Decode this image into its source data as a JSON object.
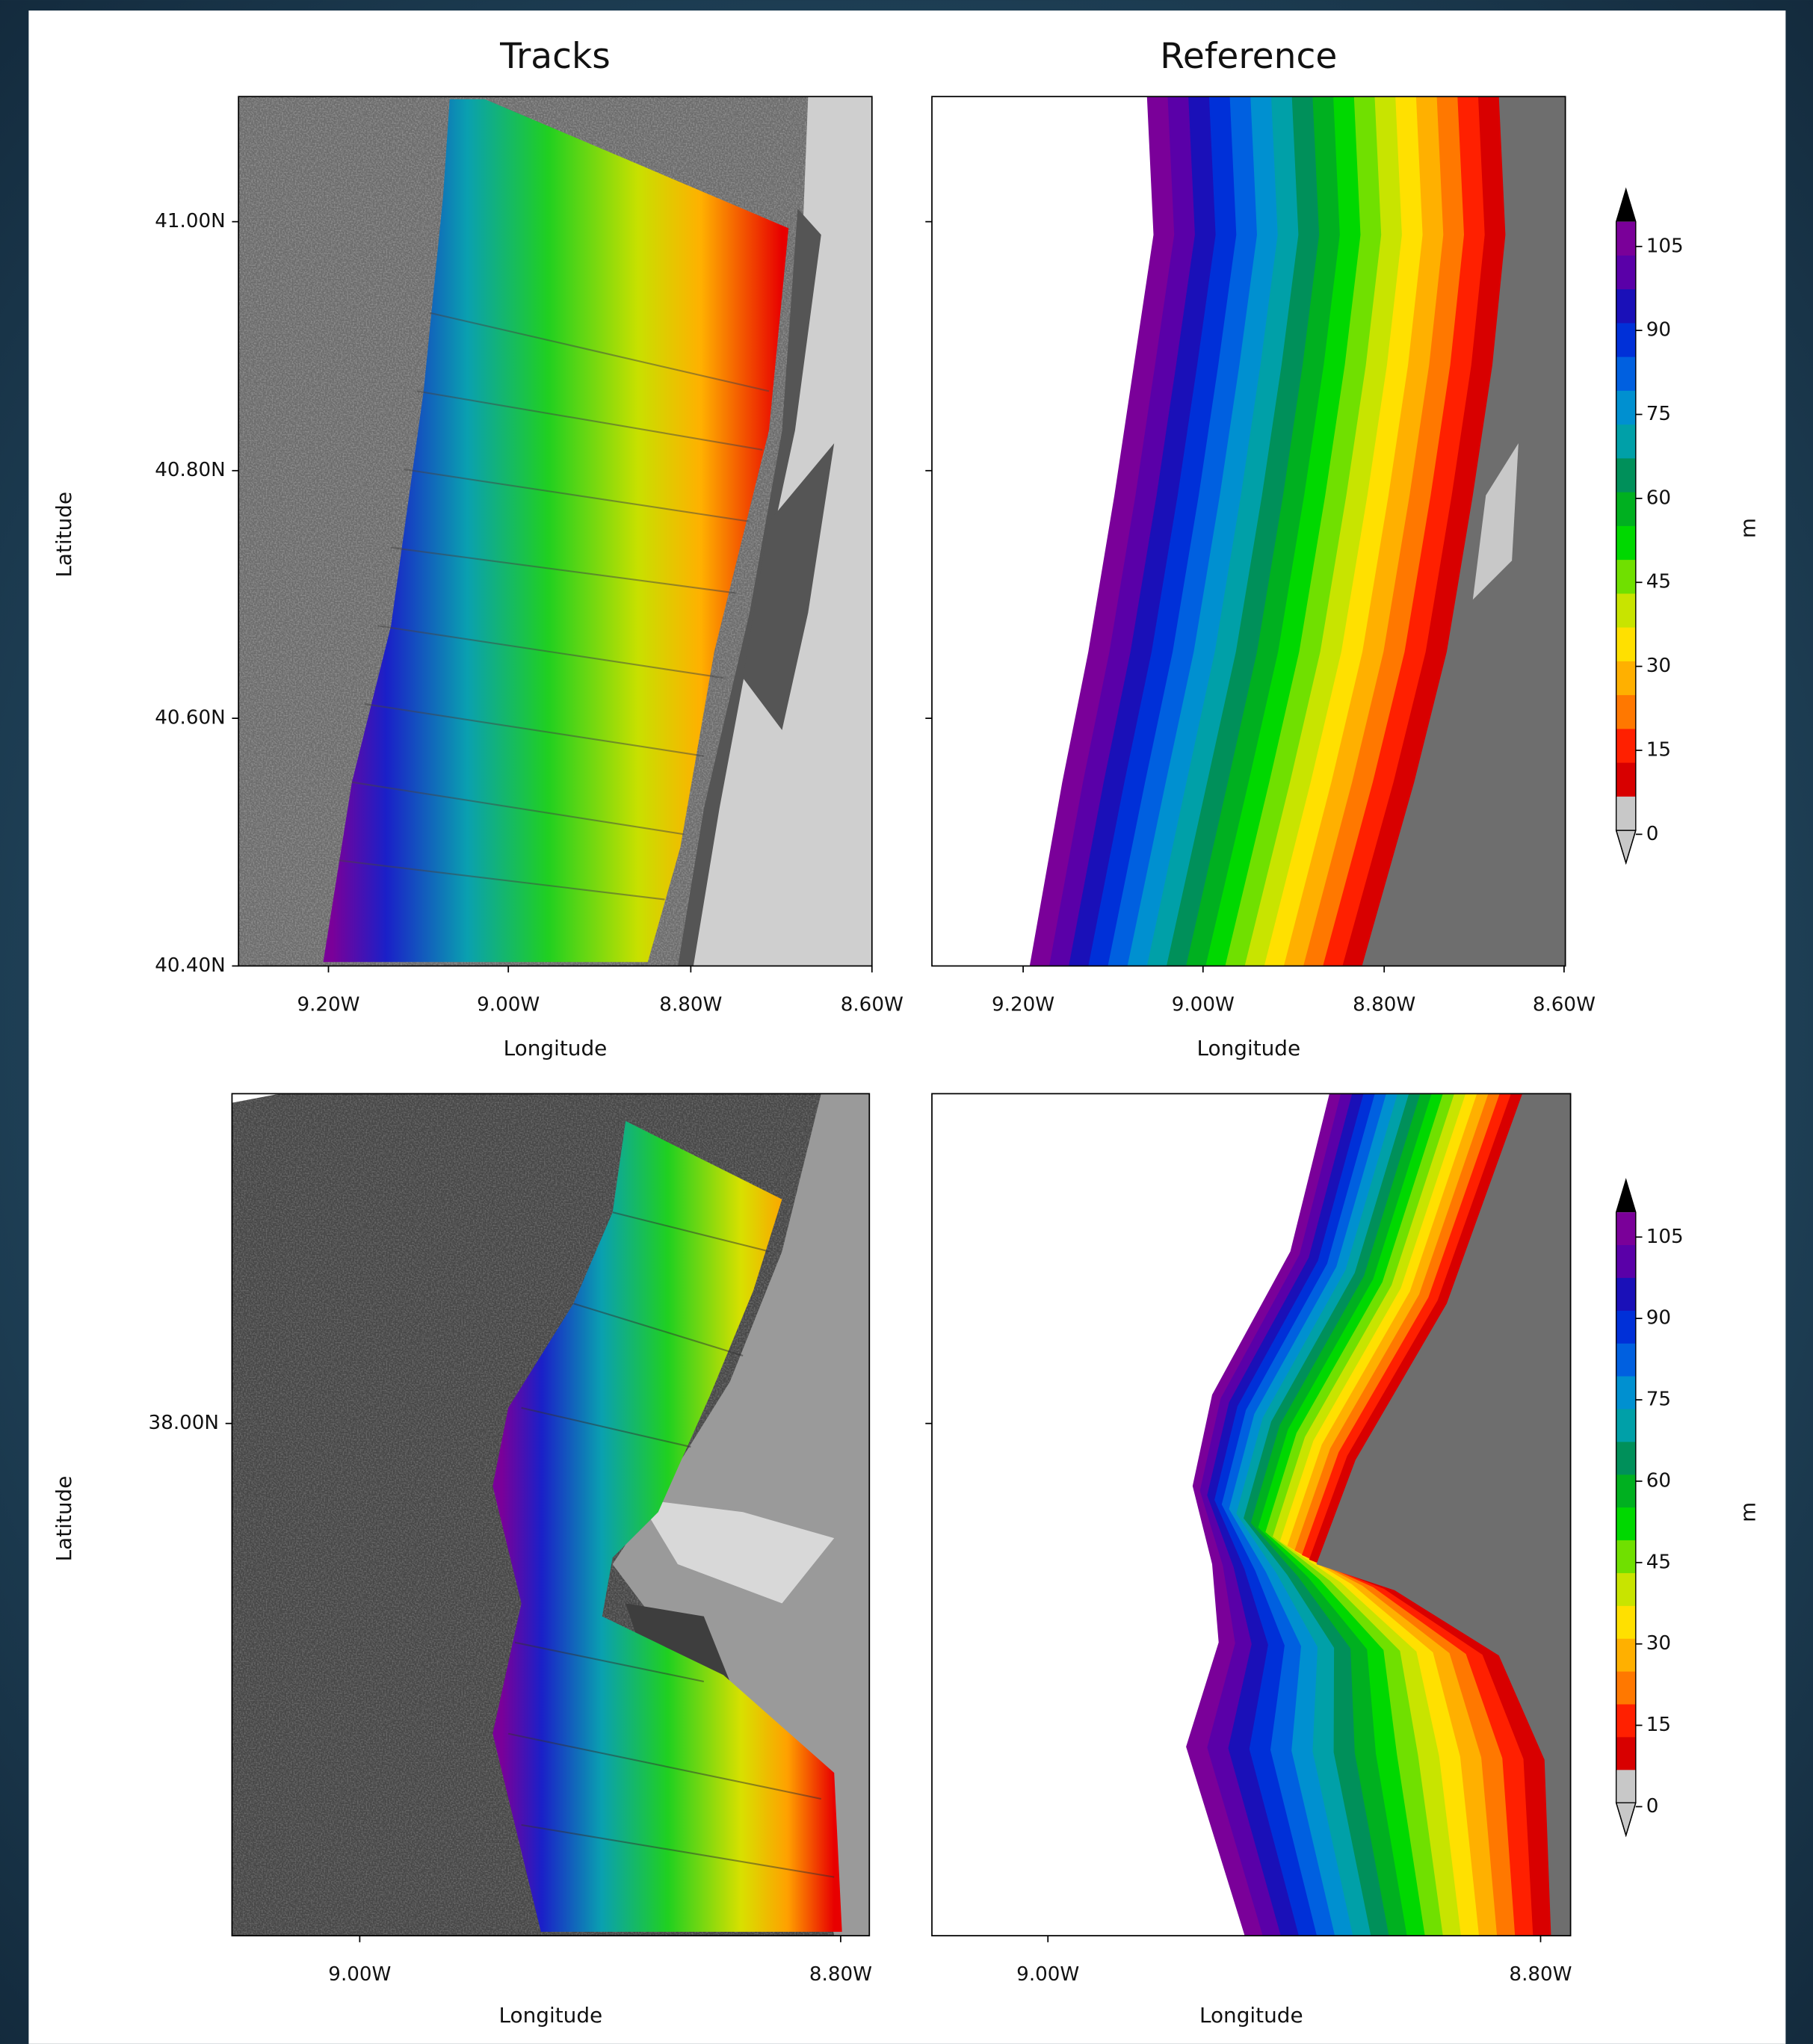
{
  "panels": [
    {
      "title": "Tracks",
      "xlabel": "Longitude",
      "ylabel": "Latitude",
      "xticks": [
        "9.20W",
        "9.00W",
        "8.80W",
        "8.60W"
      ],
      "yticks": [
        "41.00N",
        "40.80N",
        "40.60N",
        "40.40N"
      ]
    },
    {
      "title": "Reference",
      "xlabel": "Longitude",
      "xticks": [
        "9.20W",
        "9.00W",
        "8.80W",
        "8.60W"
      ]
    },
    {
      "xlabel": "Longitude",
      "ylabel": "Latitude",
      "xticks": [
        "9.00W",
        "8.80W"
      ],
      "yticks": [
        "38.00N"
      ]
    },
    {
      "xlabel": "Longitude",
      "xticks": [
        "9.00W",
        "8.80W"
      ]
    }
  ],
  "colorbars": [
    {
      "label": "m",
      "ticks": [
        "105",
        "90",
        "75",
        "60",
        "45",
        "30",
        "15",
        "0"
      ]
    },
    {
      "label": "m",
      "ticks": [
        "105",
        "90",
        "75",
        "60",
        "45",
        "30",
        "15",
        "0"
      ]
    }
  ]
}
